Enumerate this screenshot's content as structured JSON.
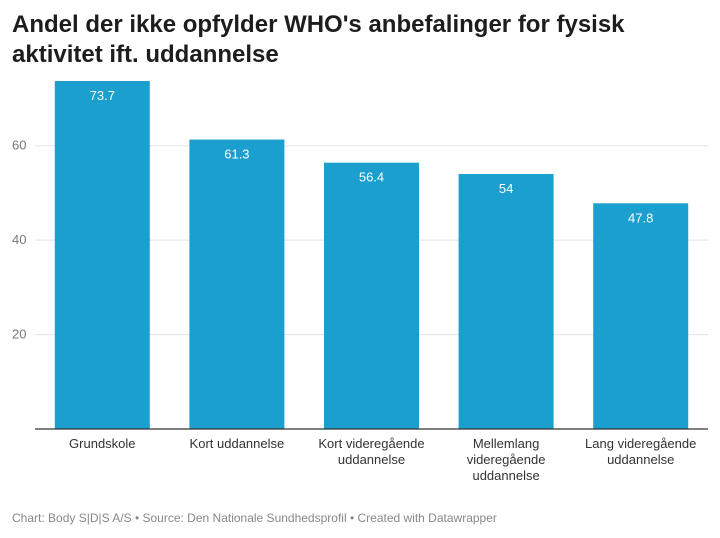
{
  "title": "Andel der ikke opfylder WHO's anbefalinger for fysisk aktivitet ift. uddannelse",
  "footer": "Chart: Body S|D|S A/S • Source: Den Nationale Sundhedsprofil • Created with Datawrapper",
  "colors": {
    "bar": "#1a9fce",
    "grid": "#e3e3e3",
    "axis": "#333333"
  },
  "chart_data": {
    "type": "bar",
    "categories": [
      [
        "Grundskole"
      ],
      [
        "Kort uddannelse"
      ],
      [
        "Kort videregående",
        "uddannelse"
      ],
      [
        "Mellemlang",
        "videregående",
        "uddannelse"
      ],
      [
        "Lang videregående",
        "uddannelse"
      ]
    ],
    "values": [
      73.7,
      61.3,
      56.4,
      54,
      47.8
    ],
    "value_labels": [
      "73.7",
      "61.3",
      "56.4",
      "54",
      "47.8"
    ],
    "yticks": [
      20,
      40,
      60
    ],
    "ylim": [
      0,
      73.7
    ],
    "grid": true
  }
}
